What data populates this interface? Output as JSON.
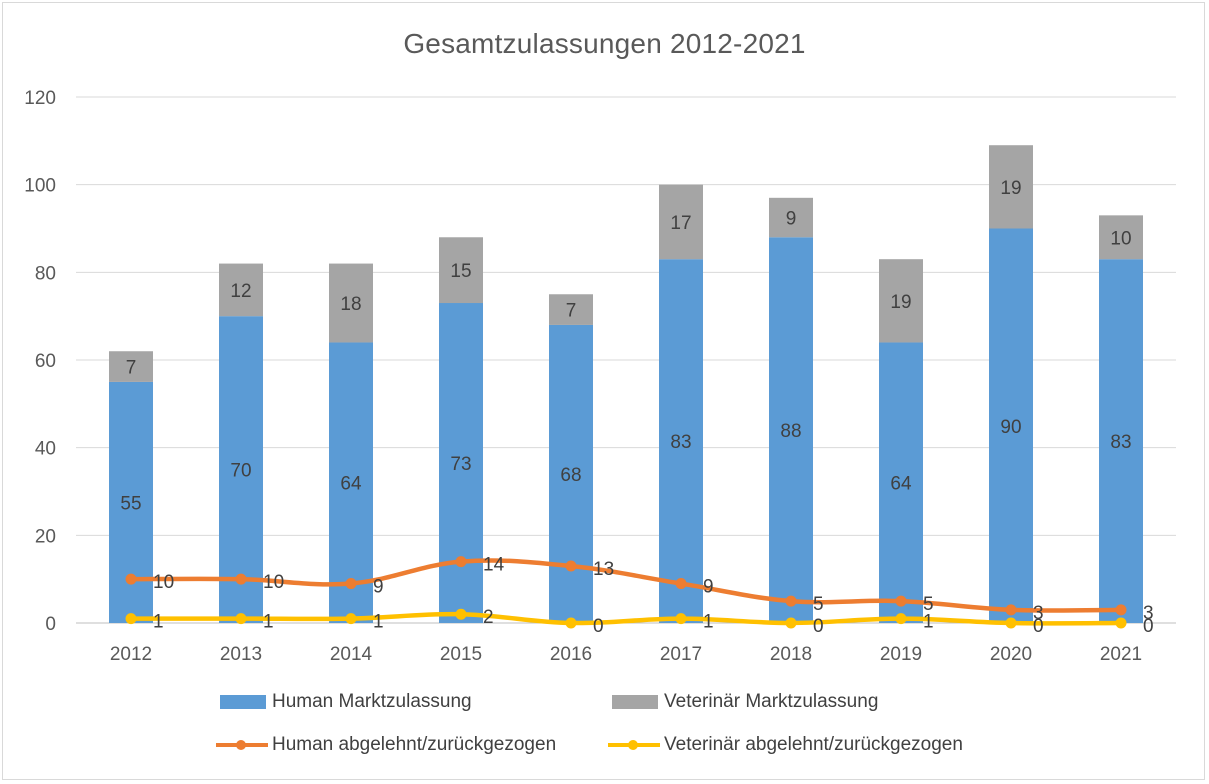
{
  "chart_data": {
    "type": "bar",
    "title": "Gesamtzulassungen 2012-2021",
    "categories": [
      "2012",
      "2013",
      "2014",
      "2015",
      "2016",
      "2017",
      "2018",
      "2019",
      "2020",
      "2021"
    ],
    "ylim": [
      0,
      120
    ],
    "yticks": [
      0,
      20,
      40,
      60,
      80,
      100,
      120
    ],
    "grid": true,
    "legend_position": "bottom",
    "series": [
      {
        "name": "Human Marktzulassung",
        "type": "bar",
        "stack": "total",
        "color": "#5b9bd5",
        "values": [
          55,
          70,
          64,
          73,
          68,
          83,
          88,
          64,
          90,
          83
        ]
      },
      {
        "name": "Veterinär Marktzulassung",
        "type": "bar",
        "stack": "total",
        "color": "#a5a5a5",
        "values": [
          7,
          12,
          18,
          15,
          7,
          17,
          9,
          19,
          19,
          10
        ]
      },
      {
        "name": "Human abgelehnt/zurückgezogen",
        "type": "line",
        "color": "#ed7d31",
        "values": [
          10,
          10,
          9,
          14,
          13,
          9,
          5,
          5,
          3,
          3
        ]
      },
      {
        "name": "Veterinär abgelehnt/zurückgezogen",
        "type": "line",
        "color": "#ffc000",
        "values": [
          1,
          1,
          1,
          2,
          0,
          1,
          0,
          1,
          0,
          0
        ]
      }
    ]
  }
}
